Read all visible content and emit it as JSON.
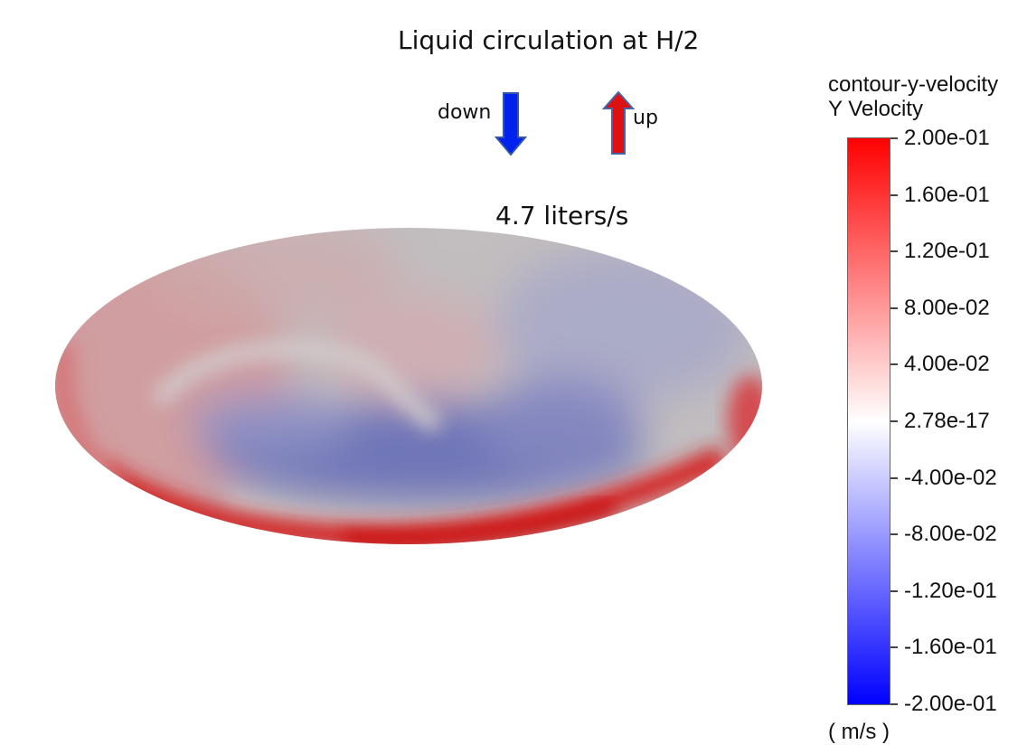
{
  "title": "Liquid circulation at H/2",
  "legend": {
    "down_label": "down",
    "up_label": "up",
    "down_color": "#0022ee",
    "up_color": "#dd1111",
    "down_icon": "arrow-down-icon",
    "up_icon": "arrow-up-icon"
  },
  "flow_rate": "4.7 liters/s",
  "colorbar": {
    "title_line1": "contour-y-velocity",
    "title_line2": "Y Velocity",
    "ticks": [
      "2.00e-01",
      "1.60e-01",
      "1.20e-01",
      "8.00e-02",
      "4.00e-02",
      "2.78e-17",
      "-4.00e-02",
      "-8.00e-02",
      "-1.20e-01",
      "-1.60e-01",
      "-2.00e-01"
    ],
    "unit": "( m/s )",
    "max_color": "#ff0000",
    "mid_color": "#ffffff",
    "min_color": "#0000ff"
  }
}
